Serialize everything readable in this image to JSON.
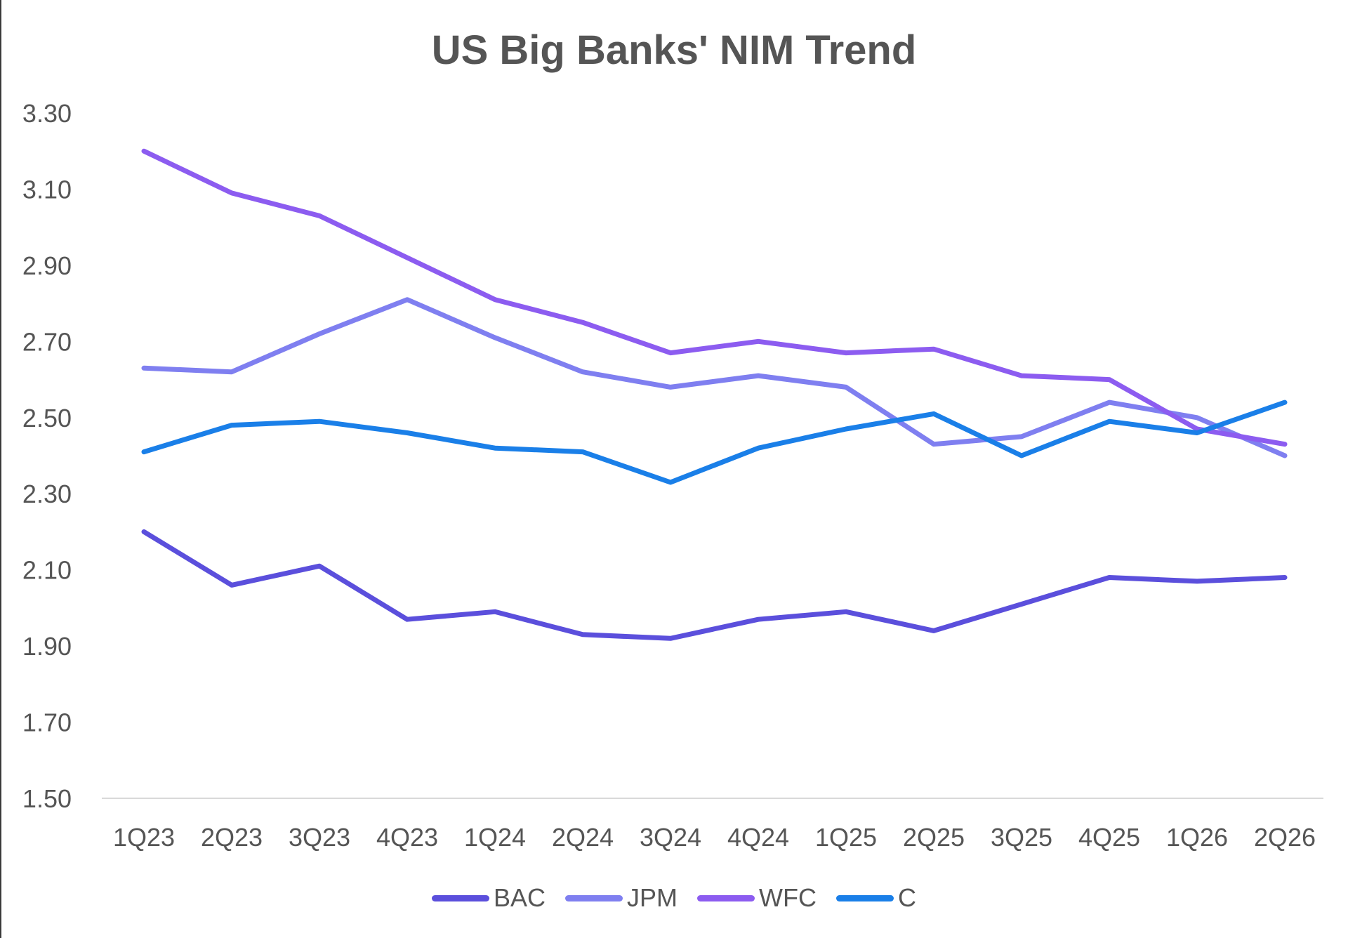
{
  "chart_data": {
    "type": "line",
    "title": "US Big Banks' NIM Trend",
    "xlabel": "",
    "ylabel": "",
    "ylim": [
      1.5,
      3.3
    ],
    "yticks": [
      "1.50",
      "1.70",
      "1.90",
      "2.10",
      "2.30",
      "2.50",
      "2.70",
      "2.90",
      "3.10",
      "3.30"
    ],
    "grid": false,
    "legend_position": "bottom",
    "categories": [
      "1Q23",
      "2Q23",
      "3Q23",
      "4Q23",
      "1Q24",
      "2Q24",
      "3Q24",
      "4Q24",
      "1Q25",
      "2Q25",
      "3Q25",
      "4Q25",
      "1Q26",
      "2Q26"
    ],
    "series": [
      {
        "name": "BAC",
        "color": "#5b4fdc",
        "values": [
          2.2,
          2.06,
          2.11,
          1.97,
          1.99,
          1.93,
          1.92,
          1.97,
          1.99,
          1.94,
          2.01,
          2.08,
          2.07,
          2.08
        ]
      },
      {
        "name": "JPM",
        "color": "#7f7ff0",
        "values": [
          2.63,
          2.62,
          2.72,
          2.81,
          2.71,
          2.62,
          2.58,
          2.61,
          2.58,
          2.43,
          2.45,
          2.54,
          2.5,
          2.4
        ]
      },
      {
        "name": "WFC",
        "color": "#8c5cf0",
        "values": [
          3.2,
          3.09,
          3.03,
          2.92,
          2.81,
          2.75,
          2.67,
          2.7,
          2.67,
          2.68,
          2.61,
          2.6,
          2.47,
          2.43
        ]
      },
      {
        "name": "C",
        "color": "#1a7fe8",
        "values": [
          2.41,
          2.48,
          2.49,
          2.46,
          2.42,
          2.41,
          2.33,
          2.42,
          2.47,
          2.51,
          2.4,
          2.49,
          2.46,
          2.54
        ]
      }
    ]
  }
}
